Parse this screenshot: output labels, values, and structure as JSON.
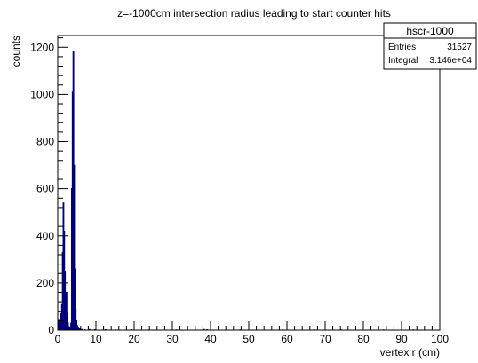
{
  "colors": {
    "histogram": "#00007a",
    "axis": "#000000",
    "background": "#ffffff"
  },
  "stats_box": {
    "name": "hscr-1000",
    "entries_label": "Entries",
    "entries_value": "31527",
    "integral_label": "Integral",
    "integral_value": "3.146e+04"
  },
  "chart_data": {
    "type": "bar",
    "title": "z=-1000cm intersection radius leading to start counter hits",
    "xlabel": "vertex r (cm)",
    "ylabel": "counts",
    "xlim": [
      0,
      100
    ],
    "ylim": [
      0,
      1250
    ],
    "bin_width": 0.2,
    "xticks": [
      0,
      10,
      20,
      30,
      40,
      50,
      60,
      70,
      80,
      90,
      100
    ],
    "yticks": [
      0,
      200,
      400,
      600,
      800,
      1000,
      1200
    ],
    "grid": false,
    "legend": "top-right",
    "x": [
      0.1,
      0.3,
      0.5,
      0.7,
      0.9,
      1.1,
      1.3,
      1.5,
      1.7,
      1.9,
      2.1,
      2.3,
      2.5,
      2.7,
      2.9,
      3.1,
      3.3,
      3.5,
      3.7,
      3.9,
      4.1,
      4.3,
      4.5,
      4.7,
      4.9,
      5.1,
      5.3,
      5.5,
      5.7,
      5.9,
      6.3,
      7.1,
      8.3,
      9.7,
      12.5,
      15.1,
      19.3,
      23.9,
      31.1,
      38.3,
      39.1,
      47.7,
      58.9,
      67.1,
      74.1,
      85.3,
      93.1
    ],
    "values": [
      20,
      45,
      30,
      70,
      50,
      110,
      330,
      540,
      420,
      250,
      140,
      160,
      70,
      30,
      15,
      10,
      8,
      30,
      600,
      1010,
      1180,
      700,
      260,
      90,
      40,
      20,
      10,
      6,
      5,
      4,
      3,
      2,
      3,
      2,
      2,
      1,
      2,
      1,
      1,
      3,
      2,
      1,
      1,
      1,
      2,
      1,
      1
    ]
  }
}
